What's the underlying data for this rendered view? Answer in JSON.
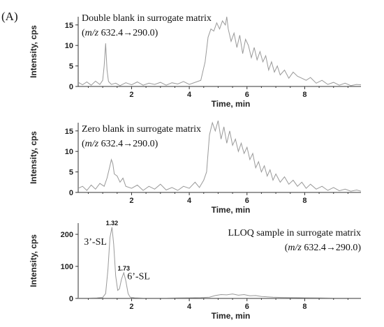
{
  "figure": {
    "panel_label": "(A)"
  },
  "chart_data": [
    {
      "type": "line",
      "title": "",
      "annotation": {
        "line1": "Double blank in surrogate matrix",
        "line2_italic": "m/z",
        "line2_rest": " 632.4→290.0)",
        "line2_open": "("
      },
      "xlabel": "Time, min",
      "ylabel": "Intensity, cps",
      "xlim": [
        0.15,
        9.95
      ],
      "ylim": [
        0,
        17
      ],
      "xticks": [
        2,
        4,
        6,
        8
      ],
      "yticks": [
        0,
        5,
        10,
        15
      ],
      "peak_labels": [],
      "series": [
        {
          "color": "#999999",
          "x": [
            0.15,
            0.3,
            0.45,
            0.6,
            0.75,
            0.9,
            1.0,
            1.05,
            1.1,
            1.15,
            1.2,
            1.3,
            1.45,
            1.6,
            1.8,
            2.0,
            2.2,
            2.4,
            2.6,
            2.8,
            3.0,
            3.2,
            3.4,
            3.6,
            3.8,
            4.0,
            4.2,
            4.4,
            4.55,
            4.65,
            4.75,
            4.85,
            4.95,
            5.05,
            5.15,
            5.25,
            5.3,
            5.35,
            5.45,
            5.55,
            5.65,
            5.75,
            5.85,
            5.95,
            6.05,
            6.15,
            6.25,
            6.35,
            6.45,
            6.55,
            6.65,
            6.75,
            6.85,
            6.95,
            7.05,
            7.15,
            7.3,
            7.45,
            7.6,
            7.75,
            7.9,
            8.05,
            8.2,
            8.4,
            8.6,
            8.8,
            9.0,
            9.2,
            9.4,
            9.6,
            9.8,
            9.95
          ],
          "y": [
            1,
            0.4,
            1.1,
            0.3,
            1.3,
            0.5,
            1.5,
            5,
            10.5,
            4,
            1.2,
            0.5,
            0.8,
            0.2,
            0.9,
            0.4,
            1.1,
            0.3,
            0.8,
            0.5,
            1.0,
            0.3,
            0.9,
            0.6,
            1.2,
            0.5,
            1.0,
            1.5,
            6,
            12,
            14,
            13.5,
            15.5,
            14,
            16,
            15,
            17,
            14,
            11,
            13,
            9.5,
            12.5,
            8,
            11.5,
            10,
            7,
            9.5,
            6.5,
            8.5,
            6,
            7.5,
            4,
            6,
            3.5,
            5,
            2.8,
            4,
            2,
            3.5,
            2.5,
            2,
            1.5,
            2.2,
            0.8,
            1.5,
            0.5,
            1.0,
            0.3,
            0.8,
            0.2,
            0.5,
            0.4
          ]
        }
      ]
    },
    {
      "type": "line",
      "title": "",
      "annotation": {
        "line1": "Zero blank in surrogate matrix",
        "line2_italic": "m/z",
        "line2_rest": " 632.4→290.0)",
        "line2_open": "("
      },
      "xlabel": "Time, min",
      "ylabel": "Intensity, cps",
      "xlim": [
        0.15,
        9.95
      ],
      "ylim": [
        0,
        17
      ],
      "xticks": [
        2,
        4,
        6,
        8
      ],
      "yticks": [
        0,
        5,
        10,
        15
      ],
      "peak_labels": [],
      "series": [
        {
          "color": "#999999",
          "x": [
            0.15,
            0.3,
            0.45,
            0.6,
            0.75,
            0.9,
            1.05,
            1.15,
            1.25,
            1.3,
            1.35,
            1.4,
            1.5,
            1.6,
            1.7,
            1.8,
            2.0,
            2.2,
            2.4,
            2.6,
            2.8,
            3.0,
            3.2,
            3.4,
            3.6,
            3.8,
            4.0,
            4.2,
            4.35,
            4.5,
            4.6,
            4.7,
            4.8,
            4.9,
            5.0,
            5.1,
            5.2,
            5.3,
            5.4,
            5.5,
            5.6,
            5.7,
            5.8,
            5.9,
            6.0,
            6.1,
            6.2,
            6.3,
            6.4,
            6.5,
            6.6,
            6.7,
            6.8,
            6.9,
            7.0,
            7.15,
            7.3,
            7.45,
            7.6,
            7.75,
            7.9,
            8.05,
            8.2,
            8.4,
            8.6,
            8.8,
            9.0,
            9.2,
            9.4,
            9.6,
            9.8,
            9.95
          ],
          "y": [
            1,
            1.5,
            0.5,
            1.8,
            0.8,
            2.2,
            1.5,
            3.5,
            6.5,
            8,
            7,
            4.5,
            4,
            2.5,
            3.5,
            1.5,
            1.0,
            1.8,
            0.5,
            1.5,
            0.8,
            2.0,
            0.6,
            1.2,
            0.5,
            1.5,
            1.0,
            2.5,
            1.2,
            3,
            5,
            14,
            17,
            15,
            17.5,
            13,
            16,
            12,
            15,
            11.5,
            13,
            10,
            12,
            9.5,
            11,
            8,
            9.5,
            6,
            7.5,
            5,
            6.5,
            4,
            5.5,
            3,
            4.5,
            2.5,
            3.8,
            2,
            3,
            1.5,
            2.5,
            1,
            2,
            0.8,
            1.5,
            0.5,
            1.2,
            0.4,
            0.8,
            0.3,
            0.6,
            0.3
          ]
        }
      ]
    },
    {
      "type": "line",
      "title": "",
      "annotation": {
        "line1": "LLOQ sample in surrogate matrix",
        "line2_italic": "m/z",
        "line2_rest": " 632.4→290.0)",
        "line2_open": "("
      },
      "xlabel": "Time, min",
      "ylabel": "Intensity, cps",
      "xlim": [
        0.15,
        9.95
      ],
      "ylim": [
        0,
        235
      ],
      "xticks": [
        2,
        4,
        6,
        8
      ],
      "yticks": [
        0,
        100,
        200
      ],
      "peak_labels": [
        {
          "x": 1.32,
          "y": 222,
          "text": "1.32"
        },
        {
          "x": 1.73,
          "y": 80,
          "text": "1.73"
        }
      ],
      "compound_labels": [
        {
          "text": "3’-SL",
          "x": 0.35,
          "y": 168
        },
        {
          "text": "6’-SL",
          "x": 1.85,
          "y": 60
        }
      ],
      "series": [
        {
          "color": "#999999",
          "x": [
            0.15,
            0.5,
            0.8,
            1.0,
            1.1,
            1.18,
            1.25,
            1.32,
            1.38,
            1.45,
            1.52,
            1.58,
            1.65,
            1.73,
            1.8,
            1.88,
            1.95,
            2.1,
            2.4,
            2.8,
            3.2,
            3.6,
            4.0,
            4.4,
            4.7,
            4.9,
            5.1,
            5.3,
            5.5,
            5.7,
            5.9,
            6.1,
            6.3,
            6.5,
            6.7,
            6.9,
            7.2,
            7.6,
            8.0,
            8.5,
            9.0,
            9.5,
            9.95
          ],
          "y": [
            1,
            1,
            1.5,
            3,
            15,
            90,
            190,
            222,
            170,
            70,
            25,
            30,
            60,
            80,
            55,
            15,
            4,
            2,
            1,
            1,
            1,
            1.5,
            2,
            2.5,
            4,
            9,
            12,
            11,
            14,
            10,
            12,
            8,
            9,
            6,
            5,
            4,
            3,
            2.5,
            2,
            1.5,
            1,
            1,
            1
          ]
        }
      ]
    }
  ]
}
